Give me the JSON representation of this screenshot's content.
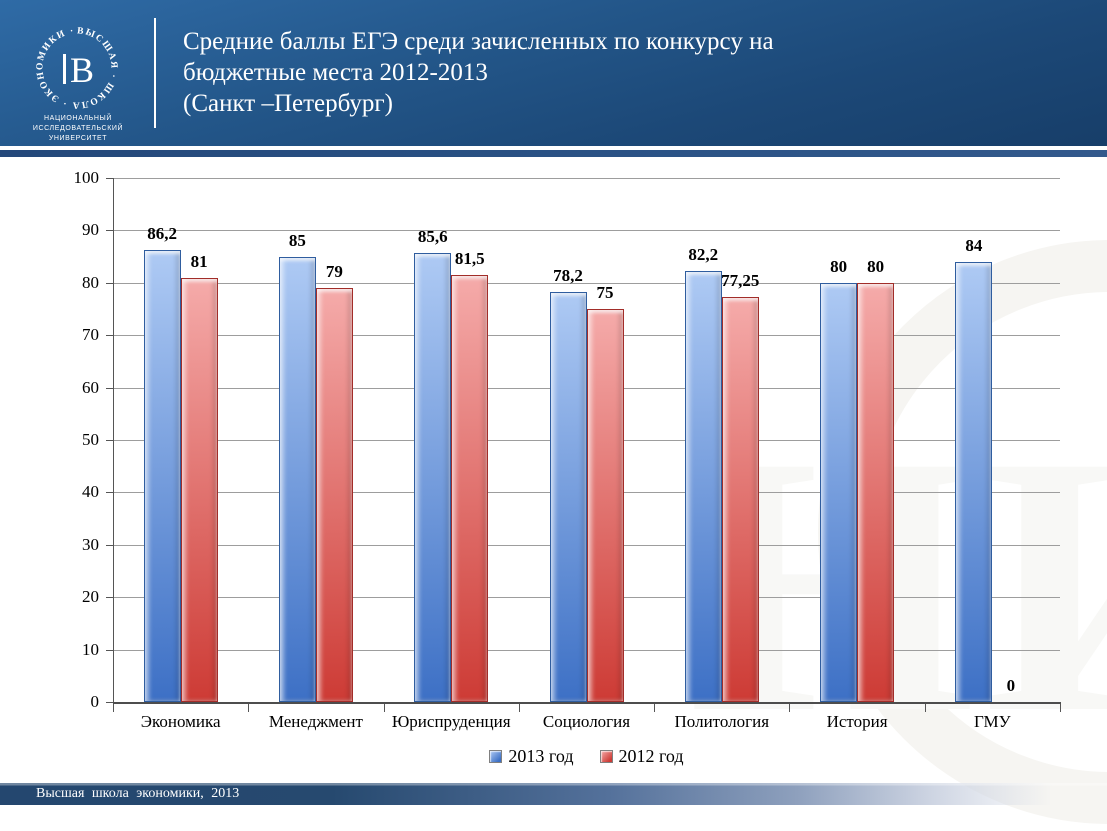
{
  "slide": {
    "title": "Средние баллы ЕГЭ среди зачисленных по конкурсу на\nбюджетные места 2012-2013\n(Санкт –Петербург)",
    "footer_text": "Высшая школа экономики, 2013",
    "watermark_letters": "НИУ"
  },
  "logo": {
    "ring_text": "ВЫСШАЯ · ШКОЛА · ЭКОНОМИКИ ·",
    "monogram": "В",
    "caption_line1": "НАЦИОНАЛЬНЫЙ ИССЛЕДОВАТЕЛЬСКИЙ",
    "caption_line2": "УНИВЕРСИТЕТ"
  },
  "colors": {
    "header_top": "#2f6ba6",
    "header_bottom": "#173e69",
    "stripe": "#2a5285",
    "gridline": "#9d9d9d",
    "axis": "#555555",
    "text": "#000000",
    "series_colors": [
      {
        "top": "#aecaf4",
        "bottom": "#3d70c5",
        "border": "#2f5d9f"
      },
      {
        "top": "#f5abaa",
        "bottom": "#cd3b35",
        "border": "#a22d29"
      }
    ]
  },
  "chart_data": {
    "type": "bar",
    "title": "",
    "xlabel": "",
    "ylabel": "",
    "categories": [
      "Экономика",
      "Менеджмент",
      "Юриспруденция",
      "Социология",
      "Политология",
      "История",
      "ГМУ"
    ],
    "series": [
      {
        "name": "2013 год",
        "values": [
          86.2,
          85,
          85.6,
          78.2,
          82.2,
          80,
          84
        ],
        "labels": [
          "86,2",
          "85",
          "85,6",
          "78,2",
          "82,2",
          "80",
          "84"
        ]
      },
      {
        "name": "2012 год",
        "values": [
          81,
          79,
          81.5,
          75,
          77.25,
          80,
          0
        ],
        "labels": [
          "81",
          "79",
          "81,5",
          "75",
          "77,25",
          "80",
          "0"
        ]
      }
    ],
    "ylim": [
      0,
      100
    ],
    "ytick_step": 10,
    "grid": true,
    "legend_position": "bottom"
  }
}
